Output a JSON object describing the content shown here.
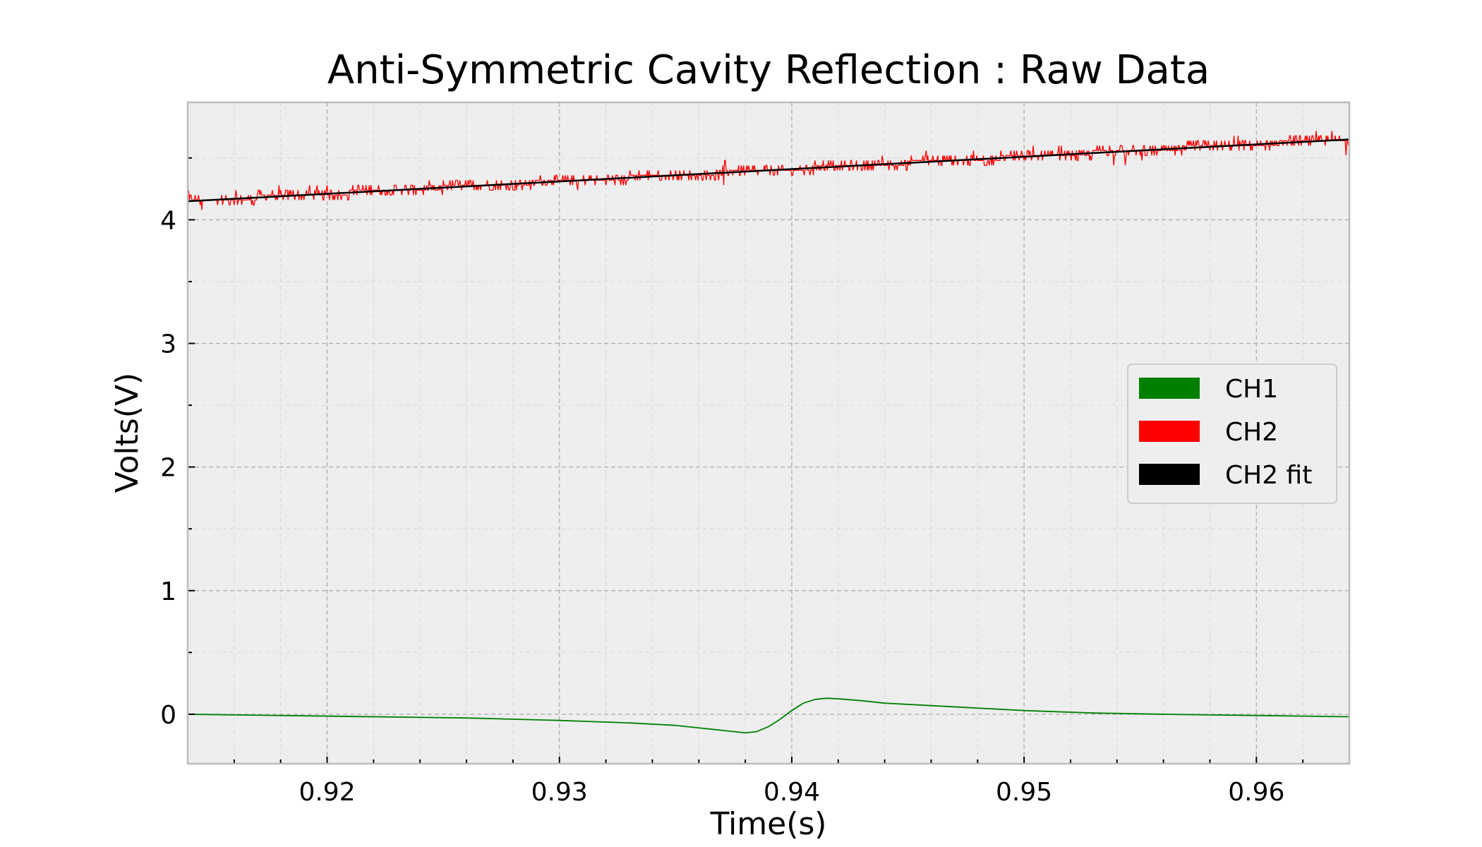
{
  "chart_data": {
    "type": "line",
    "title": "Anti-Symmetric Cavity Reflection : Raw Data",
    "xlabel": "Time(s)",
    "ylabel": "Volts(V)",
    "xlim": [
      0.914,
      0.964
    ],
    "ylim": [
      -0.4,
      4.95
    ],
    "x_major_ticks": [
      0.92,
      0.93,
      0.94,
      0.95,
      0.96
    ],
    "x_tick_labels": [
      "0.92",
      "0.93",
      "0.94",
      "0.95",
      "0.96"
    ],
    "y_major_ticks": [
      0,
      1,
      2,
      3,
      4
    ],
    "y_tick_labels": [
      "0",
      "1",
      "2",
      "3",
      "4"
    ],
    "x_minor_step": 0.002,
    "y_minor_step": 0.5,
    "grid": true,
    "legend_position": "center-right",
    "background_color": "#eeeeee",
    "series": [
      {
        "name": "CH1",
        "color": "#008000",
        "x": [
          0.914,
          0.918,
          0.922,
          0.926,
          0.93,
          0.933,
          0.935,
          0.936,
          0.937,
          0.9375,
          0.938,
          0.9385,
          0.939,
          0.9395,
          0.94,
          0.9405,
          0.941,
          0.9415,
          0.942,
          0.943,
          0.944,
          0.946,
          0.948,
          0.95,
          0.953,
          0.956,
          0.96,
          0.964
        ],
        "y": [
          0.0,
          -0.01,
          -0.02,
          -0.03,
          -0.05,
          -0.07,
          -0.09,
          -0.11,
          -0.13,
          -0.14,
          -0.15,
          -0.14,
          -0.1,
          -0.04,
          0.03,
          0.09,
          0.12,
          0.13,
          0.125,
          0.11,
          0.09,
          0.07,
          0.05,
          0.03,
          0.01,
          0.0,
          -0.01,
          -0.02
        ]
      },
      {
        "name": "CH2",
        "color": "#ff0000",
        "x_start": 0.914,
        "x_end": 0.964,
        "y_start": 4.15,
        "y_end": 4.65,
        "noise_amplitude": 0.08,
        "quantization_step": 0.04
      },
      {
        "name": "CH2 fit",
        "color": "#000000",
        "x": [
          0.914,
          0.964
        ],
        "y": [
          4.15,
          4.65
        ]
      }
    ]
  }
}
